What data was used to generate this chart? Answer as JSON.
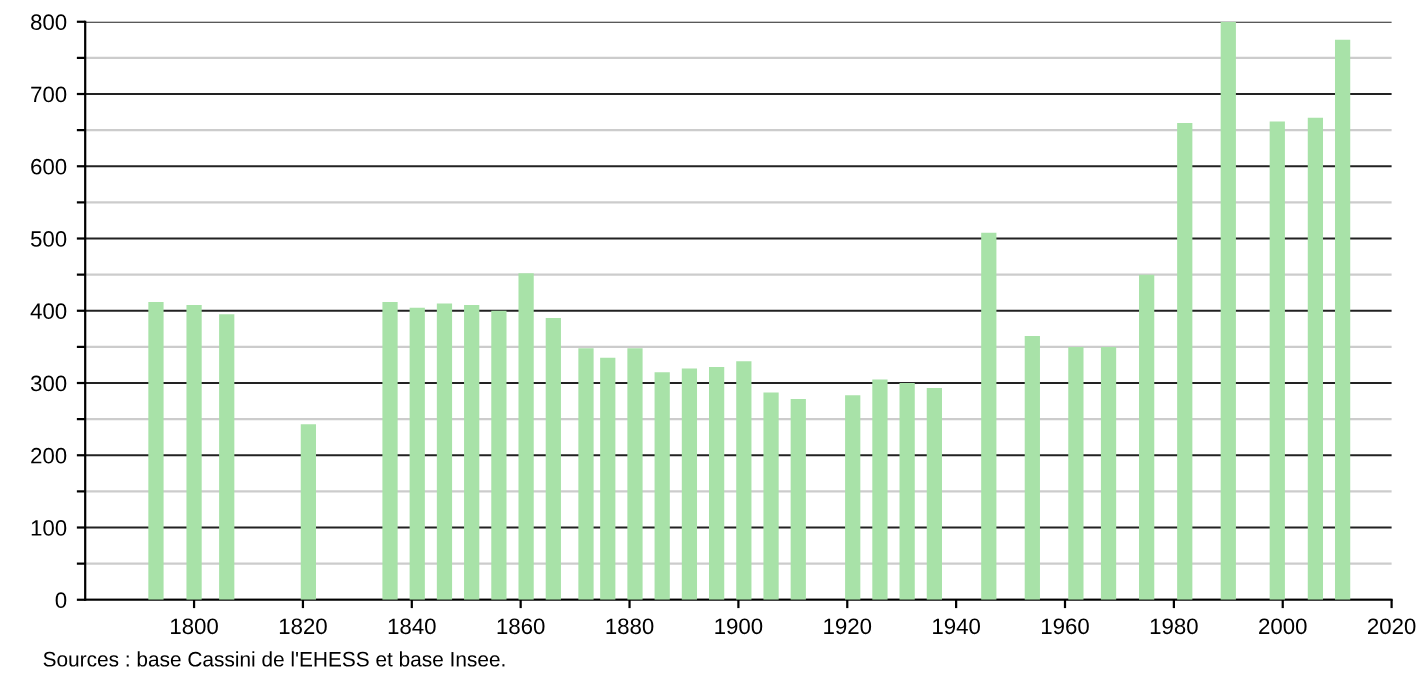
{
  "chart_data": {
    "type": "bar",
    "color": "#a8e2a8",
    "x": [
      1793,
      1800,
      1806,
      1821,
      1836,
      1841,
      1846,
      1851,
      1856,
      1861,
      1866,
      1872,
      1876,
      1881,
      1886,
      1891,
      1896,
      1901,
      1906,
      1911,
      1921,
      1926,
      1931,
      1936,
      1946,
      1954,
      1962,
      1968,
      1975,
      1982,
      1990,
      1999,
      2006,
      2011
    ],
    "values": [
      412,
      408,
      395,
      243,
      412,
      404,
      410,
      408,
      400,
      452,
      390,
      348,
      335,
      348,
      315,
      320,
      322,
      330,
      287,
      278,
      283,
      305,
      300,
      293,
      508,
      365,
      350,
      350,
      450,
      660,
      800,
      662,
      667,
      775
    ],
    "xlim": [
      1780,
      2020
    ],
    "xticks": [
      1800,
      1820,
      1840,
      1860,
      1880,
      1900,
      1920,
      1940,
      1960,
      1980,
      2000,
      2020
    ],
    "ylim": [
      0,
      800
    ],
    "yticks": [
      0,
      {
        "value": 50,
        "label": null
      },
      100,
      {
        "value": 150,
        "label": null
      },
      200,
      {
        "value": 250,
        "label": null
      },
      300,
      {
        "value": 350,
        "label": null
      },
      400,
      {
        "value": 450,
        "label": null
      },
      500,
      {
        "value": 550,
        "label": null
      },
      600,
      {
        "value": 650,
        "label": null
      },
      700,
      {
        "value": 750,
        "label": null
      },
      800
    ],
    "grid": "y",
    "annotations": [
      "Sources : base Cassini de l'EHESS et base Insee."
    ]
  }
}
